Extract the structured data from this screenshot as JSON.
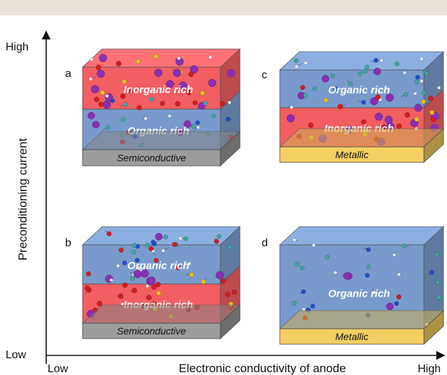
{
  "top_band_color": "#e7e1d8",
  "axes": {
    "y_high": "High",
    "y_low": "Low",
    "y_title": "Preconditioning current",
    "x_low": "Low",
    "x_high": "High",
    "x_title": "Electronic conductivity of anode"
  },
  "colors": {
    "inorganic": "#ef3b3f",
    "organic": "#5b84c1",
    "semiconductive": "#9c9c9c",
    "metallic": "#f5cf63",
    "atom_purple": "#8b2fb5",
    "atom_red": "#d41e1e",
    "atom_yellow": "#e9c31c",
    "atom_teal": "#3fa8a0",
    "atom_blue": "#1f4fd0"
  },
  "panels": [
    {
      "id": "a",
      "letter": "a",
      "substrate": "Semiconductive",
      "layers_top_to_bottom": [
        "Inorganic rich",
        "Organic rich"
      ]
    },
    {
      "id": "b",
      "letter": "b",
      "substrate": "Semiconductive",
      "layers_top_to_bottom": [
        "Organic rich",
        "Inorganic rich"
      ]
    },
    {
      "id": "c",
      "letter": "c",
      "substrate": "Metallic",
      "layers_top_to_bottom": [
        "Organic rich",
        "Inorganic rich"
      ]
    },
    {
      "id": "d",
      "letter": "d",
      "substrate": "Metallic",
      "layers_top_to_bottom": [
        "Organic rich"
      ]
    }
  ]
}
